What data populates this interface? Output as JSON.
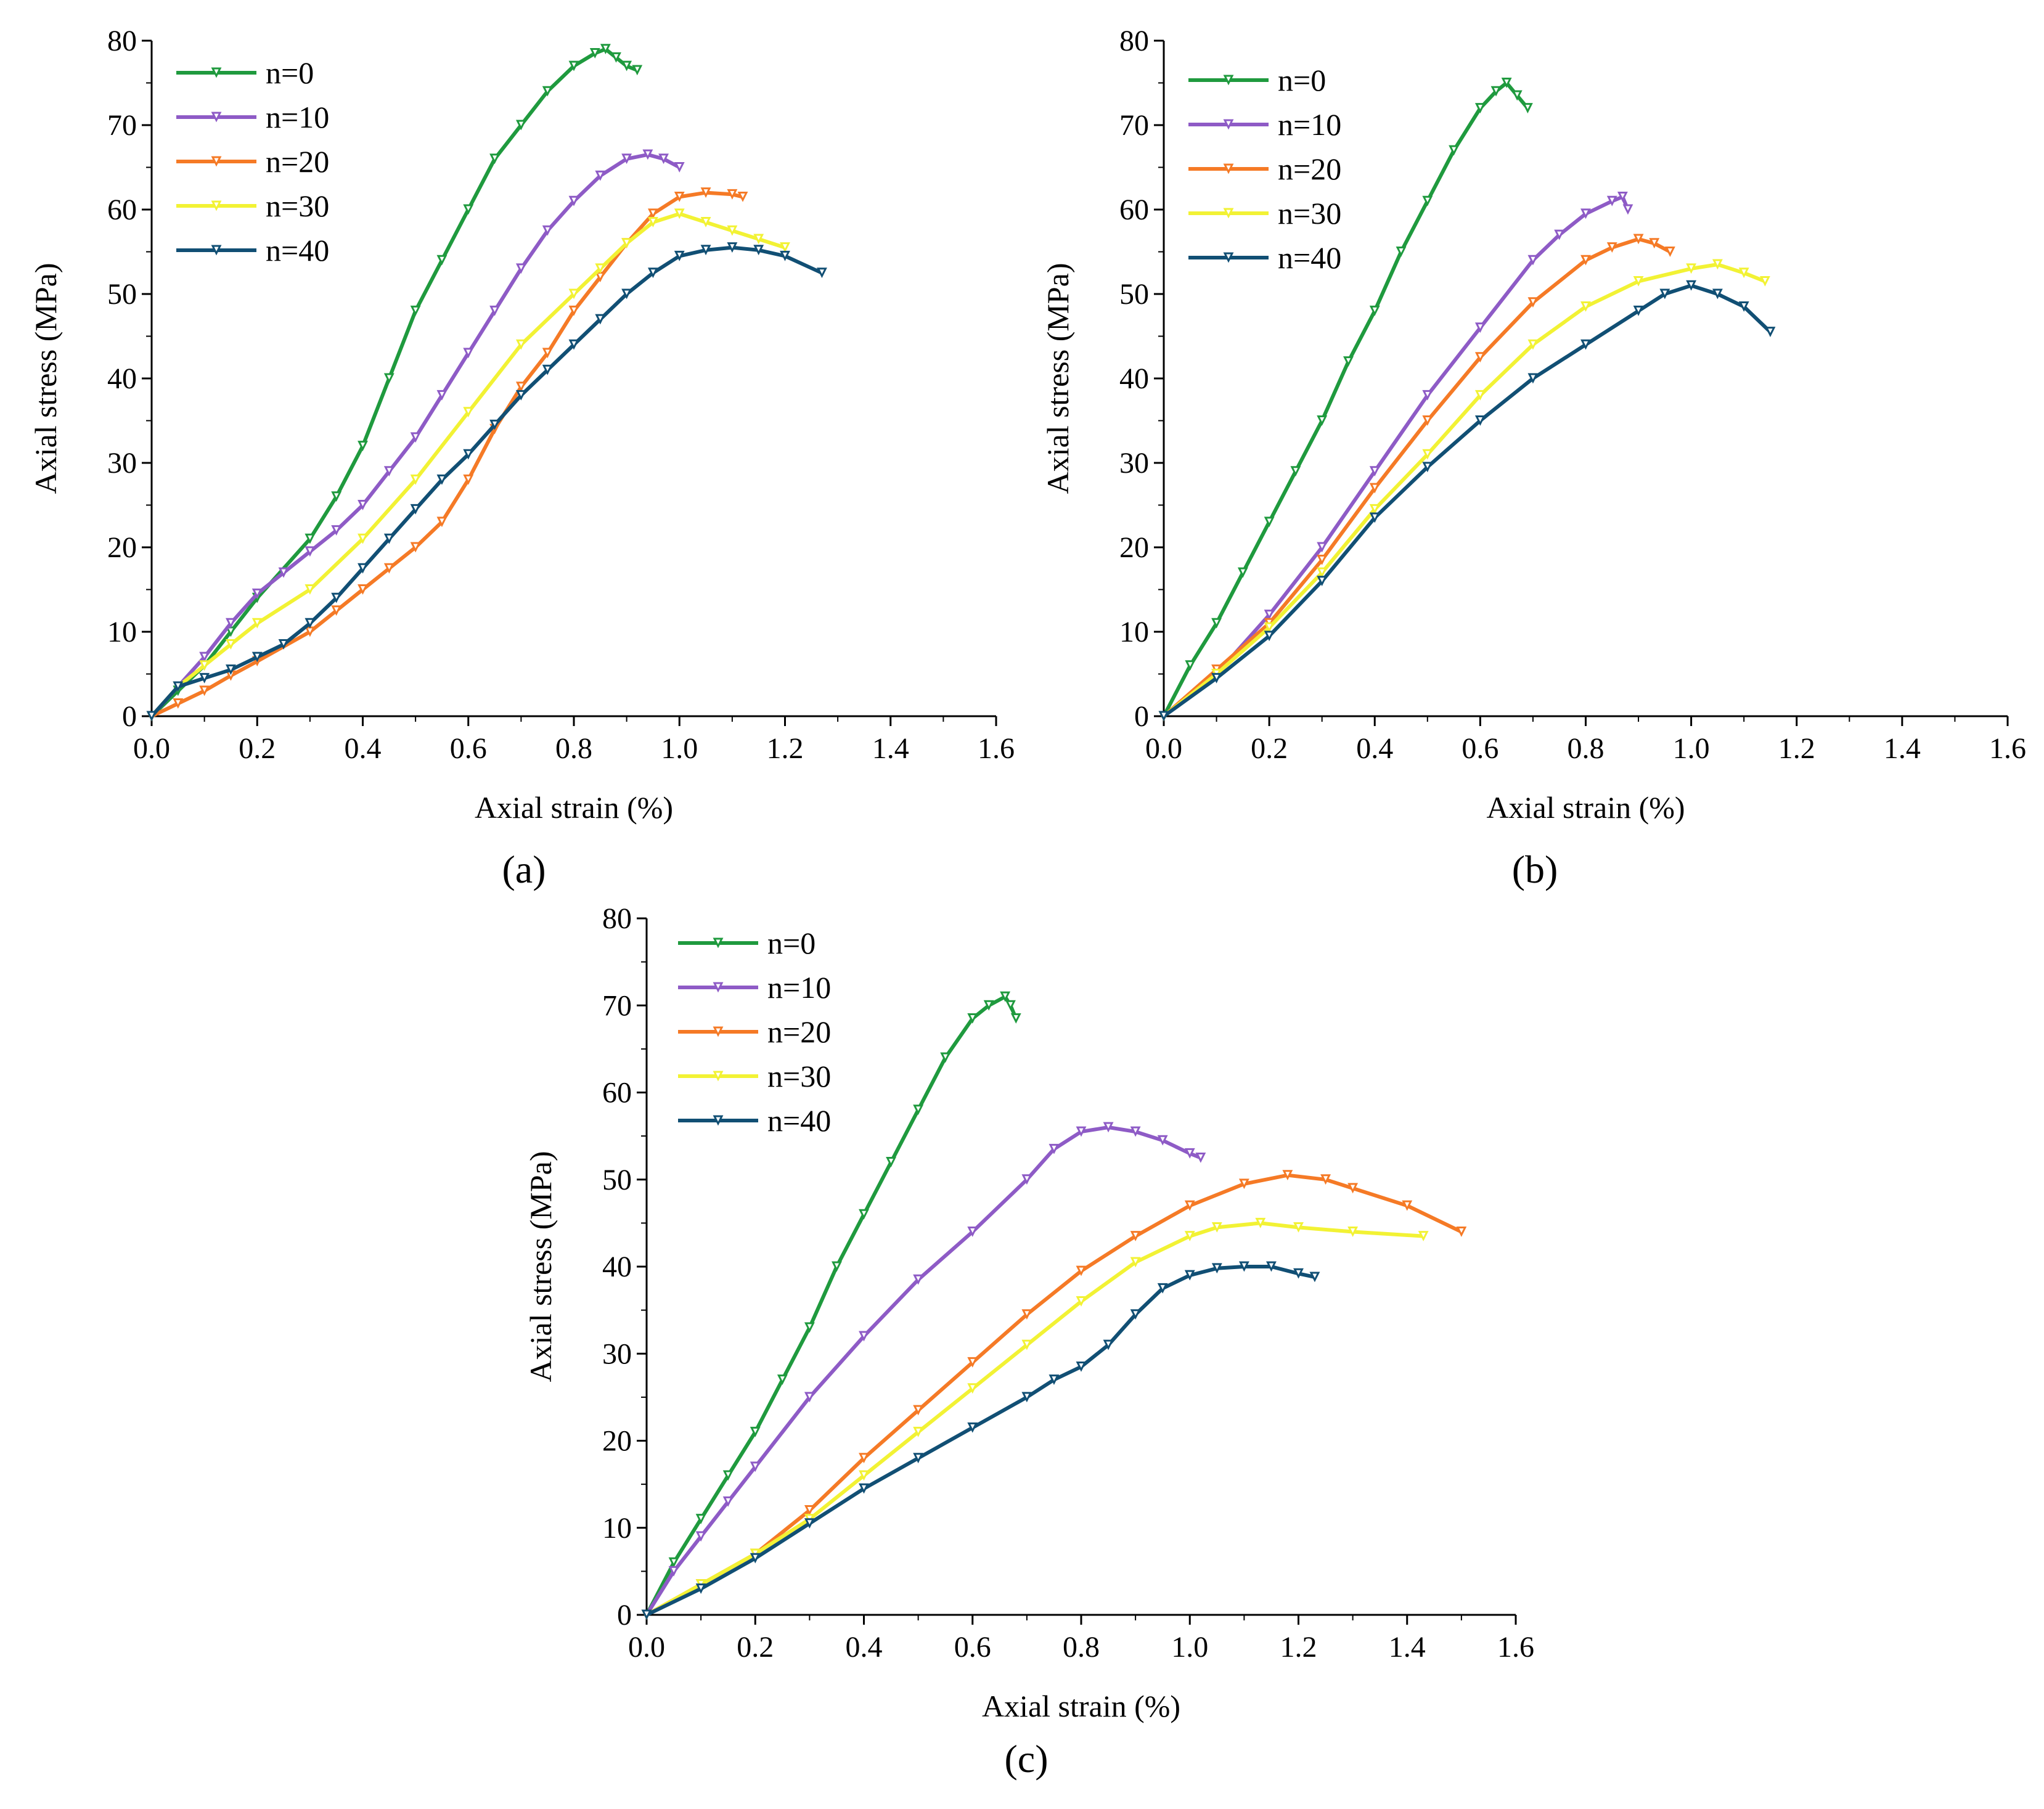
{
  "figure": {
    "panels": [
      {
        "label": "(a)",
        "letter": "a"
      },
      {
        "label": "(b)",
        "letter": "b"
      },
      {
        "label": "(c)",
        "letter": "c"
      }
    ]
  },
  "series_colors": {
    "n=0": "#1f9a3e",
    "n=10": "#8e5bc6",
    "n=20": "#f57a26",
    "n=30": "#f2f234",
    "n=40": "#114f74"
  },
  "chart_data": [
    {
      "type": "line",
      "panel": "(a)",
      "title": "",
      "xlabel": "Axial strain (%)",
      "ylabel": "Axial stress (MPa)",
      "xlim": [
        0,
        1.6
      ],
      "ylim": [
        0,
        80
      ],
      "xticks": [
        "0.0",
        "0.2",
        "0.4",
        "0.6",
        "0.8",
        "1.0",
        "1.2",
        "1.4",
        "1.6"
      ],
      "yticks": [
        "0",
        "10",
        "20",
        "30",
        "40",
        "50",
        "60",
        "70",
        "80"
      ],
      "legend_position": "top-left",
      "series": [
        {
          "name": "n=0",
          "x": [
            0,
            0.05,
            0.1,
            0.15,
            0.2,
            0.3,
            0.35,
            0.4,
            0.45,
            0.5,
            0.55,
            0.6,
            0.65,
            0.7,
            0.75,
            0.8,
            0.84,
            0.86,
            0.88,
            0.9,
            0.92
          ],
          "y": [
            0,
            3,
            6,
            10,
            14,
            21,
            26,
            32,
            40,
            48,
            54,
            60,
            66,
            70,
            74,
            77,
            78.5,
            79,
            78,
            77,
            76.5
          ]
        },
        {
          "name": "n=10",
          "x": [
            0,
            0.05,
            0.1,
            0.15,
            0.2,
            0.25,
            0.3,
            0.35,
            0.4,
            0.45,
            0.5,
            0.55,
            0.6,
            0.65,
            0.7,
            0.75,
            0.8,
            0.85,
            0.9,
            0.94,
            0.97,
            1.0
          ],
          "y": [
            0,
            3.5,
            7,
            11,
            14.5,
            17,
            19.5,
            22,
            25,
            29,
            33,
            38,
            43,
            48,
            53,
            57.5,
            61,
            64,
            66,
            66.5,
            66,
            65
          ]
        },
        {
          "name": "n=20",
          "x": [
            0,
            0.05,
            0.1,
            0.15,
            0.2,
            0.3,
            0.35,
            0.4,
            0.45,
            0.5,
            0.55,
            0.6,
            0.65,
            0.7,
            0.75,
            0.8,
            0.85,
            0.9,
            0.95,
            1.0,
            1.05,
            1.1,
            1.12
          ],
          "y": [
            0,
            1.5,
            3,
            4.8,
            6.5,
            10,
            12.5,
            15,
            17.5,
            20,
            23,
            28,
            34,
            39,
            43,
            48,
            52,
            56,
            59.5,
            61.5,
            62,
            61.8,
            61.5
          ]
        },
        {
          "name": "n=30",
          "x": [
            0,
            0.05,
            0.1,
            0.15,
            0.2,
            0.3,
            0.4,
            0.5,
            0.6,
            0.7,
            0.8,
            0.85,
            0.9,
            0.95,
            1.0,
            1.05,
            1.1,
            1.15,
            1.2
          ],
          "y": [
            0,
            3.5,
            6,
            8.5,
            11,
            15,
            21,
            28,
            36,
            44,
            50,
            53,
            56,
            58.5,
            59.5,
            58.5,
            57.5,
            56.5,
            55.5
          ]
        },
        {
          "name": "n=40",
          "x": [
            0,
            0.05,
            0.1,
            0.15,
            0.2,
            0.25,
            0.3,
            0.35,
            0.4,
            0.45,
            0.5,
            0.55,
            0.6,
            0.65,
            0.7,
            0.75,
            0.8,
            0.85,
            0.9,
            0.95,
            1.0,
            1.05,
            1.1,
            1.15,
            1.2,
            1.27
          ],
          "y": [
            0,
            3.5,
            4.5,
            5.5,
            7,
            8.5,
            11,
            14,
            17.5,
            21,
            24.5,
            28,
            31,
            34.5,
            38,
            41,
            44,
            47,
            50,
            52.5,
            54.5,
            55.2,
            55.5,
            55.2,
            54.5,
            52.5
          ]
        }
      ]
    },
    {
      "type": "line",
      "panel": "(b)",
      "title": "",
      "xlabel": "Axial strain (%)",
      "ylabel": "Axial stress (MPa)",
      "xlim": [
        0,
        1.6
      ],
      "ylim": [
        0,
        80
      ],
      "xticks": [
        "0.0",
        "0.2",
        "0.4",
        "0.6",
        "0.8",
        "1.0",
        "1.2",
        "1.4",
        "1.6"
      ],
      "yticks": [
        "0",
        "10",
        "20",
        "30",
        "40",
        "50",
        "60",
        "70",
        "80"
      ],
      "legend_position": "top-left",
      "series": [
        {
          "name": "n=0",
          "x": [
            0,
            0.05,
            0.1,
            0.15,
            0.2,
            0.25,
            0.3,
            0.35,
            0.4,
            0.45,
            0.5,
            0.55,
            0.6,
            0.63,
            0.65,
            0.67,
            0.69
          ],
          "y": [
            0,
            6,
            11,
            17,
            23,
            29,
            35,
            42,
            48,
            55,
            61,
            67,
            72,
            74,
            75,
            73.5,
            72
          ]
        },
        {
          "name": "n=10",
          "x": [
            0,
            0.1,
            0.2,
            0.3,
            0.4,
            0.5,
            0.6,
            0.7,
            0.75,
            0.8,
            0.85,
            0.87,
            0.88
          ],
          "y": [
            0,
            5,
            12,
            20,
            29,
            38,
            46,
            54,
            57,
            59.5,
            61,
            61.5,
            60
          ]
        },
        {
          "name": "n=20",
          "x": [
            0,
            0.1,
            0.2,
            0.3,
            0.4,
            0.5,
            0.6,
            0.7,
            0.8,
            0.85,
            0.9,
            0.93,
            0.96
          ],
          "y": [
            0,
            5.5,
            11,
            18.5,
            27,
            35,
            42.5,
            49,
            54,
            55.5,
            56.5,
            56,
            55
          ]
        },
        {
          "name": "n=30",
          "x": [
            0,
            0.1,
            0.2,
            0.3,
            0.4,
            0.5,
            0.6,
            0.7,
            0.8,
            0.9,
            1.0,
            1.05,
            1.1,
            1.14
          ],
          "y": [
            0,
            5,
            10.5,
            17,
            24.5,
            31,
            38,
            44,
            48.5,
            51.5,
            53,
            53.5,
            52.5,
            51.5
          ]
        },
        {
          "name": "n=40",
          "x": [
            0,
            0.1,
            0.2,
            0.3,
            0.4,
            0.5,
            0.6,
            0.7,
            0.8,
            0.9,
            0.95,
            1.0,
            1.05,
            1.1,
            1.15
          ],
          "y": [
            0,
            4.5,
            9.5,
            16,
            23.5,
            29.5,
            35,
            40,
            44,
            48,
            50,
            51,
            50,
            48.5,
            45.5
          ]
        }
      ]
    },
    {
      "type": "line",
      "panel": "(c)",
      "title": "",
      "xlabel": "Axial strain (%)",
      "ylabel": "Axial stress (MPa)",
      "xlim": [
        0,
        1.6
      ],
      "ylim": [
        0,
        80
      ],
      "xticks": [
        "0.0",
        "0.2",
        "0.4",
        "0.6",
        "0.8",
        "1.0",
        "1.2",
        "1.4",
        "1.6"
      ],
      "yticks": [
        "0",
        "10",
        "20",
        "30",
        "40",
        "50",
        "60",
        "70",
        "80"
      ],
      "legend_position": "top-left",
      "series": [
        {
          "name": "n=0",
          "x": [
            0,
            0.05,
            0.1,
            0.15,
            0.2,
            0.25,
            0.3,
            0.35,
            0.4,
            0.45,
            0.5,
            0.55,
            0.6,
            0.63,
            0.66,
            0.67,
            0.68
          ],
          "y": [
            0,
            6,
            11,
            16,
            21,
            27,
            33,
            40,
            46,
            52,
            58,
            64,
            68.5,
            70,
            71,
            70,
            68.5
          ]
        },
        {
          "name": "n=10",
          "x": [
            0,
            0.05,
            0.1,
            0.15,
            0.2,
            0.3,
            0.4,
            0.5,
            0.6,
            0.7,
            0.75,
            0.8,
            0.85,
            0.9,
            0.95,
            1.0,
            1.02
          ],
          "y": [
            0,
            5,
            9,
            13,
            17,
            25,
            32,
            38.5,
            44,
            50,
            53.5,
            55.5,
            56,
            55.5,
            54.5,
            53,
            52.5
          ]
        },
        {
          "name": "n=20",
          "x": [
            0,
            0.1,
            0.2,
            0.3,
            0.4,
            0.5,
            0.6,
            0.7,
            0.8,
            0.9,
            1.0,
            1.1,
            1.18,
            1.25,
            1.3,
            1.4,
            1.5
          ],
          "y": [
            0,
            3.5,
            7,
            12,
            18,
            23.5,
            29,
            34.5,
            39.5,
            43.5,
            47,
            49.5,
            50.5,
            50,
            49,
            47,
            44
          ]
        },
        {
          "name": "n=30",
          "x": [
            0,
            0.1,
            0.2,
            0.3,
            0.4,
            0.5,
            0.6,
            0.7,
            0.8,
            0.9,
            1.0,
            1.05,
            1.13,
            1.2,
            1.3,
            1.43
          ],
          "y": [
            0,
            3.5,
            7,
            11,
            16,
            21,
            26,
            31,
            36,
            40.5,
            43.5,
            44.5,
            45,
            44.5,
            44,
            43.5
          ]
        },
        {
          "name": "n=40",
          "x": [
            0,
            0.1,
            0.2,
            0.3,
            0.4,
            0.5,
            0.6,
            0.7,
            0.75,
            0.8,
            0.85,
            0.9,
            0.95,
            1.0,
            1.05,
            1.1,
            1.15,
            1.2,
            1.23
          ],
          "y": [
            0,
            3,
            6.5,
            10.5,
            14.5,
            18,
            21.5,
            25,
            27,
            28.5,
            31,
            34.5,
            37.5,
            39,
            39.8,
            40,
            40,
            39.2,
            38.8
          ]
        }
      ]
    }
  ]
}
